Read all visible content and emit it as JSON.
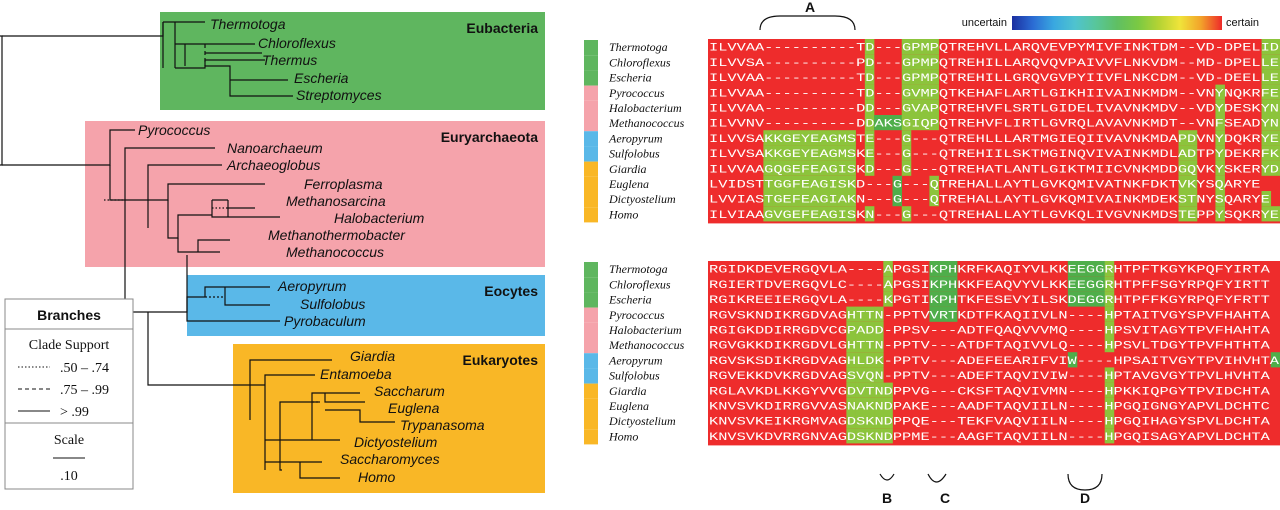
{
  "tree": {
    "groups": [
      {
        "name": "Eubacteria",
        "color": "#5fb65f"
      },
      {
        "name": "Euryarchaeota",
        "color": "#f5a3ab"
      },
      {
        "name": "Eocytes",
        "color": "#5ab8e8"
      },
      {
        "name": "Eukaryotes",
        "color": "#f9b726"
      }
    ],
    "taxa": [
      "Thermotoga",
      "Chloroflexus",
      "Thermus",
      "Escheria",
      "Streptomyces",
      "Pyrococcus",
      "Nanoarchaeum",
      "Archaeoglobus",
      "Ferroplasma",
      "Methanosarcina",
      "Halobacterium",
      "Methanothermobacter",
      "Methanococcus",
      "Aeropyrum",
      "Sulfolobus",
      "Pyrobaculum",
      "Giardia",
      "Entamoeba",
      "Saccharum",
      "Euglena",
      "Trypanasoma",
      "Dictyostelium",
      "Saccharomyces",
      "Homo"
    ]
  },
  "legend": {
    "branches_title": "Branches",
    "clade_support_title": "Clade Support",
    "support": [
      {
        "label": ".50 – .74",
        "style": "dotted"
      },
      {
        "label": ".75 – .99",
        "style": "dashed"
      },
      {
        "label": "> .99",
        "style": "solid"
      }
    ],
    "scale_title": "Scale",
    "scale_value": ".10"
  },
  "alignment": {
    "color_scale": {
      "left": "uncertain",
      "right": "certain",
      "colors": [
        "#1b2fa0",
        "#2b6cd4",
        "#39a8e0",
        "#4fc3cf",
        "#58c69a",
        "#5fbf63",
        "#7ac943",
        "#b5d334",
        "#f0e43a",
        "#f2a22a",
        "#ee2a2a"
      ]
    },
    "regions": [
      "A",
      "B",
      "C",
      "D"
    ],
    "blocks": [
      {
        "labels": [
          "Thermotoga",
          "Chloroflexus",
          "Escheria",
          "Pyrococcus",
          "Halobacterium",
          "Methanococcus",
          "Aeropyrum",
          "Sulfolobus",
          "Giardia",
          "Euglena",
          "Dictyostelium",
          "Homo"
        ],
        "label_colors": [
          "#5fb65f",
          "#5fb65f",
          "#5fb65f",
          "#f5a3ab",
          "#f5a3ab",
          "#f5a3ab",
          "#5ab8e8",
          "#5ab8e8",
          "#f9b726",
          "#f9b726",
          "#f9b726",
          "#f9b726"
        ],
        "rows": [
          "ILVVAA----------TD---GPMPQTREHVLLARQVEVPYMIVFINKTDM--VD-DPELID",
          "ILVVSA----------PD---GPMPQTREHILLARQVQVPAIVVFLNKVDM--MD-DPELLE",
          "ILVVAA----------TD---GPMPQTREHILLGRQVGVPYIIVFLNKCDM--VD-DEELLE",
          "ILVVAA----------TD---GVMPQTKEHAFLARTLGIKHIIVAINKMDM--VNYNQKRFE",
          "ILVVAA----------DD---GVAPQTREHVFLSRTLGIDELIVAVNKMDV--VDYDESKYN",
          "ILVVNV----------DDAKSGIQPQTREHVFLIRTLGVRQLAVAVNKMDT--VNFSEADYN",
          "ILVVSAKKGEYEAGMSTE---G---QTREHLLLARTMGIEQIIVAVNKMDAPDVNYDQKRYE",
          "ILVVSAKKGEYEAGMSKE---G---QTREHIILSKTMGINQVIVAINKMDLADTPYDEKRFK",
          "ILVVAAGQGEFEAGISKD---G---QTREHATLANTLGIKTMIICVNKMDDGQVKYSKERYD",
          "LVIDSTTGGFEAGISKD---G---QTREHALLAYTLGVKQMIVATNKFDKTVKYSQARYE",
          "LVVIASTGEFEAGIAKN---G---QTREHALLAYTLGVKQMIVAINKMDEKSTNYSQARYE",
          "ILVIAAGVGEFEAGISKN---G---QTREHALLAYTLGVKQLIVGVNKMDSTEPPYSQKRYE"
        ]
      },
      {
        "labels": [
          "Thermotoga",
          "Chloroflexus",
          "Escheria",
          "Pyrococcus",
          "Halobacterium",
          "Methanococcus",
          "Aeropyrum",
          "Sulfolobus",
          "Giardia",
          "Euglena",
          "Dictyostelium",
          "Homo"
        ],
        "label_colors": [
          "#5fb65f",
          "#5fb65f",
          "#5fb65f",
          "#f5a3ab",
          "#f5a3ab",
          "#f5a3ab",
          "#5ab8e8",
          "#5ab8e8",
          "#f9b726",
          "#f9b726",
          "#f9b726",
          "#f9b726"
        ],
        "rows": [
          "RGIDKDEVERGQVLA----APGSIKPHKRFKAQIYVLKKEEGGRHTPFTKGYKPQFYIRTA",
          "RGIERTDVERGQVLC----APGSIKPHKKFEAQVYVLKKEEGGRHTPFFSGYRPQFYIRTT",
          "RGIKREEIERGQVLA----KPGTIKPHTKFESEVYILSKDEGGRHTPFFKGYRPQFYFRTT",
          "RGVSKNDIKRGDVAGHTTN-PPTVVRTKDTFKAQIIVLN----HPTAITVGYSPVFHAHTA",
          "RGIGKDDIRRGDVCGPADD-PPSV---ADTFQAQVVVMQ----HPSVITAGYTPVFHAHTA",
          "RGVGKKDIKRGDVLGHTTN-PPTV---ATDFTAQIVVLQ----HPSVLTDGYTPVFHTHTA",
          "RGVSKSDIKRGDVAGHLDK-PPTV---ADEFEEARIFVIW----HPSAITVGYTPVIHVHTA",
          "RGVEKKDVKRGDVAGSVQN-PPTV---ADEFTAQVIVIW----HPTAVGVGYTPVLHVHTA",
          "RGLAVKDLKKGYVVGDVTNDPPVG---CKSFTAQVIVMN----HPKKIQPGYTPVIDCHTA",
          "KNVSVKDIRRGVVASNAKNDPAKE---AADFTAQVIILN----HPGQIGNGYAPVLDCHTC",
          "KNVSVKEIKRGMVAGDSKNDPPQE---TEKFVAQVIILN----HPGQIHAGYSPVLDCHTA",
          "KNVSVKDVRRGNVAGDSKNDPPME---AAGFTAQVIILN----HPGQISAGYAPVLDCHTA"
        ]
      }
    ]
  }
}
